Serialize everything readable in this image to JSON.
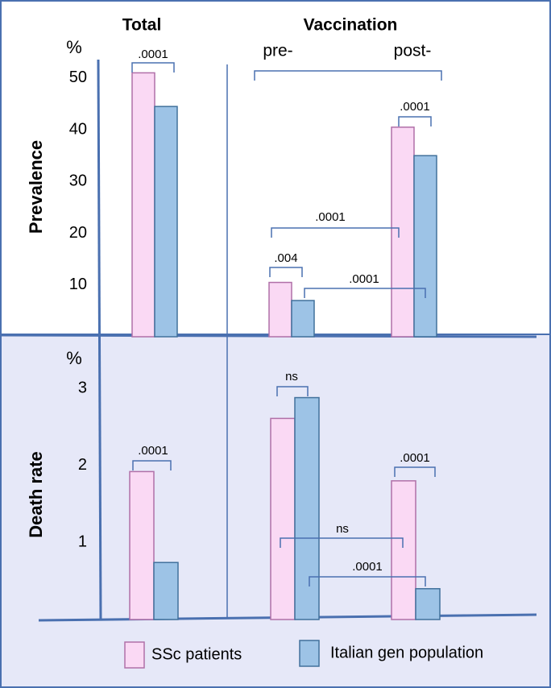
{
  "chart_data": [
    {
      "type": "bar",
      "y_label": "Prevalence",
      "y_unit": "%",
      "group_label": "Vaccination",
      "categories": [
        "Total",
        "pre-",
        "post-"
      ],
      "series": [
        {
          "name": "SSc patients",
          "color": "#fad9f4",
          "values": [
            51,
            10.5,
            40.5
          ]
        },
        {
          "name": "Italian gen population",
          "color": "#9dc3e6",
          "values": [
            44.5,
            7,
            35
          ]
        }
      ],
      "ylim": [
        0,
        53.4
      ],
      "yticks": [
        10,
        20,
        30,
        40,
        50
      ],
      "annotations": [
        ".0001",
        ".0001",
        ".0001",
        ".004",
        ".0001"
      ]
    },
    {
      "type": "bar",
      "y_label": "Death rate",
      "y_unit": "%",
      "categories": [
        null,
        null,
        null
      ],
      "series": [
        {
          "color": "#fad9f4",
          "values": [
            1.92,
            2.61,
            1.8
          ]
        },
        {
          "color": "#9dc3e6",
          "values": [
            0.74,
            2.88,
            0.4
          ]
        }
      ],
      "ylim": [
        0,
        3.67
      ],
      "yticks": [
        1,
        2,
        3
      ],
      "annotations": [
        "ns",
        ".0001",
        ".0001",
        "ns",
        ".0001"
      ]
    }
  ]
}
